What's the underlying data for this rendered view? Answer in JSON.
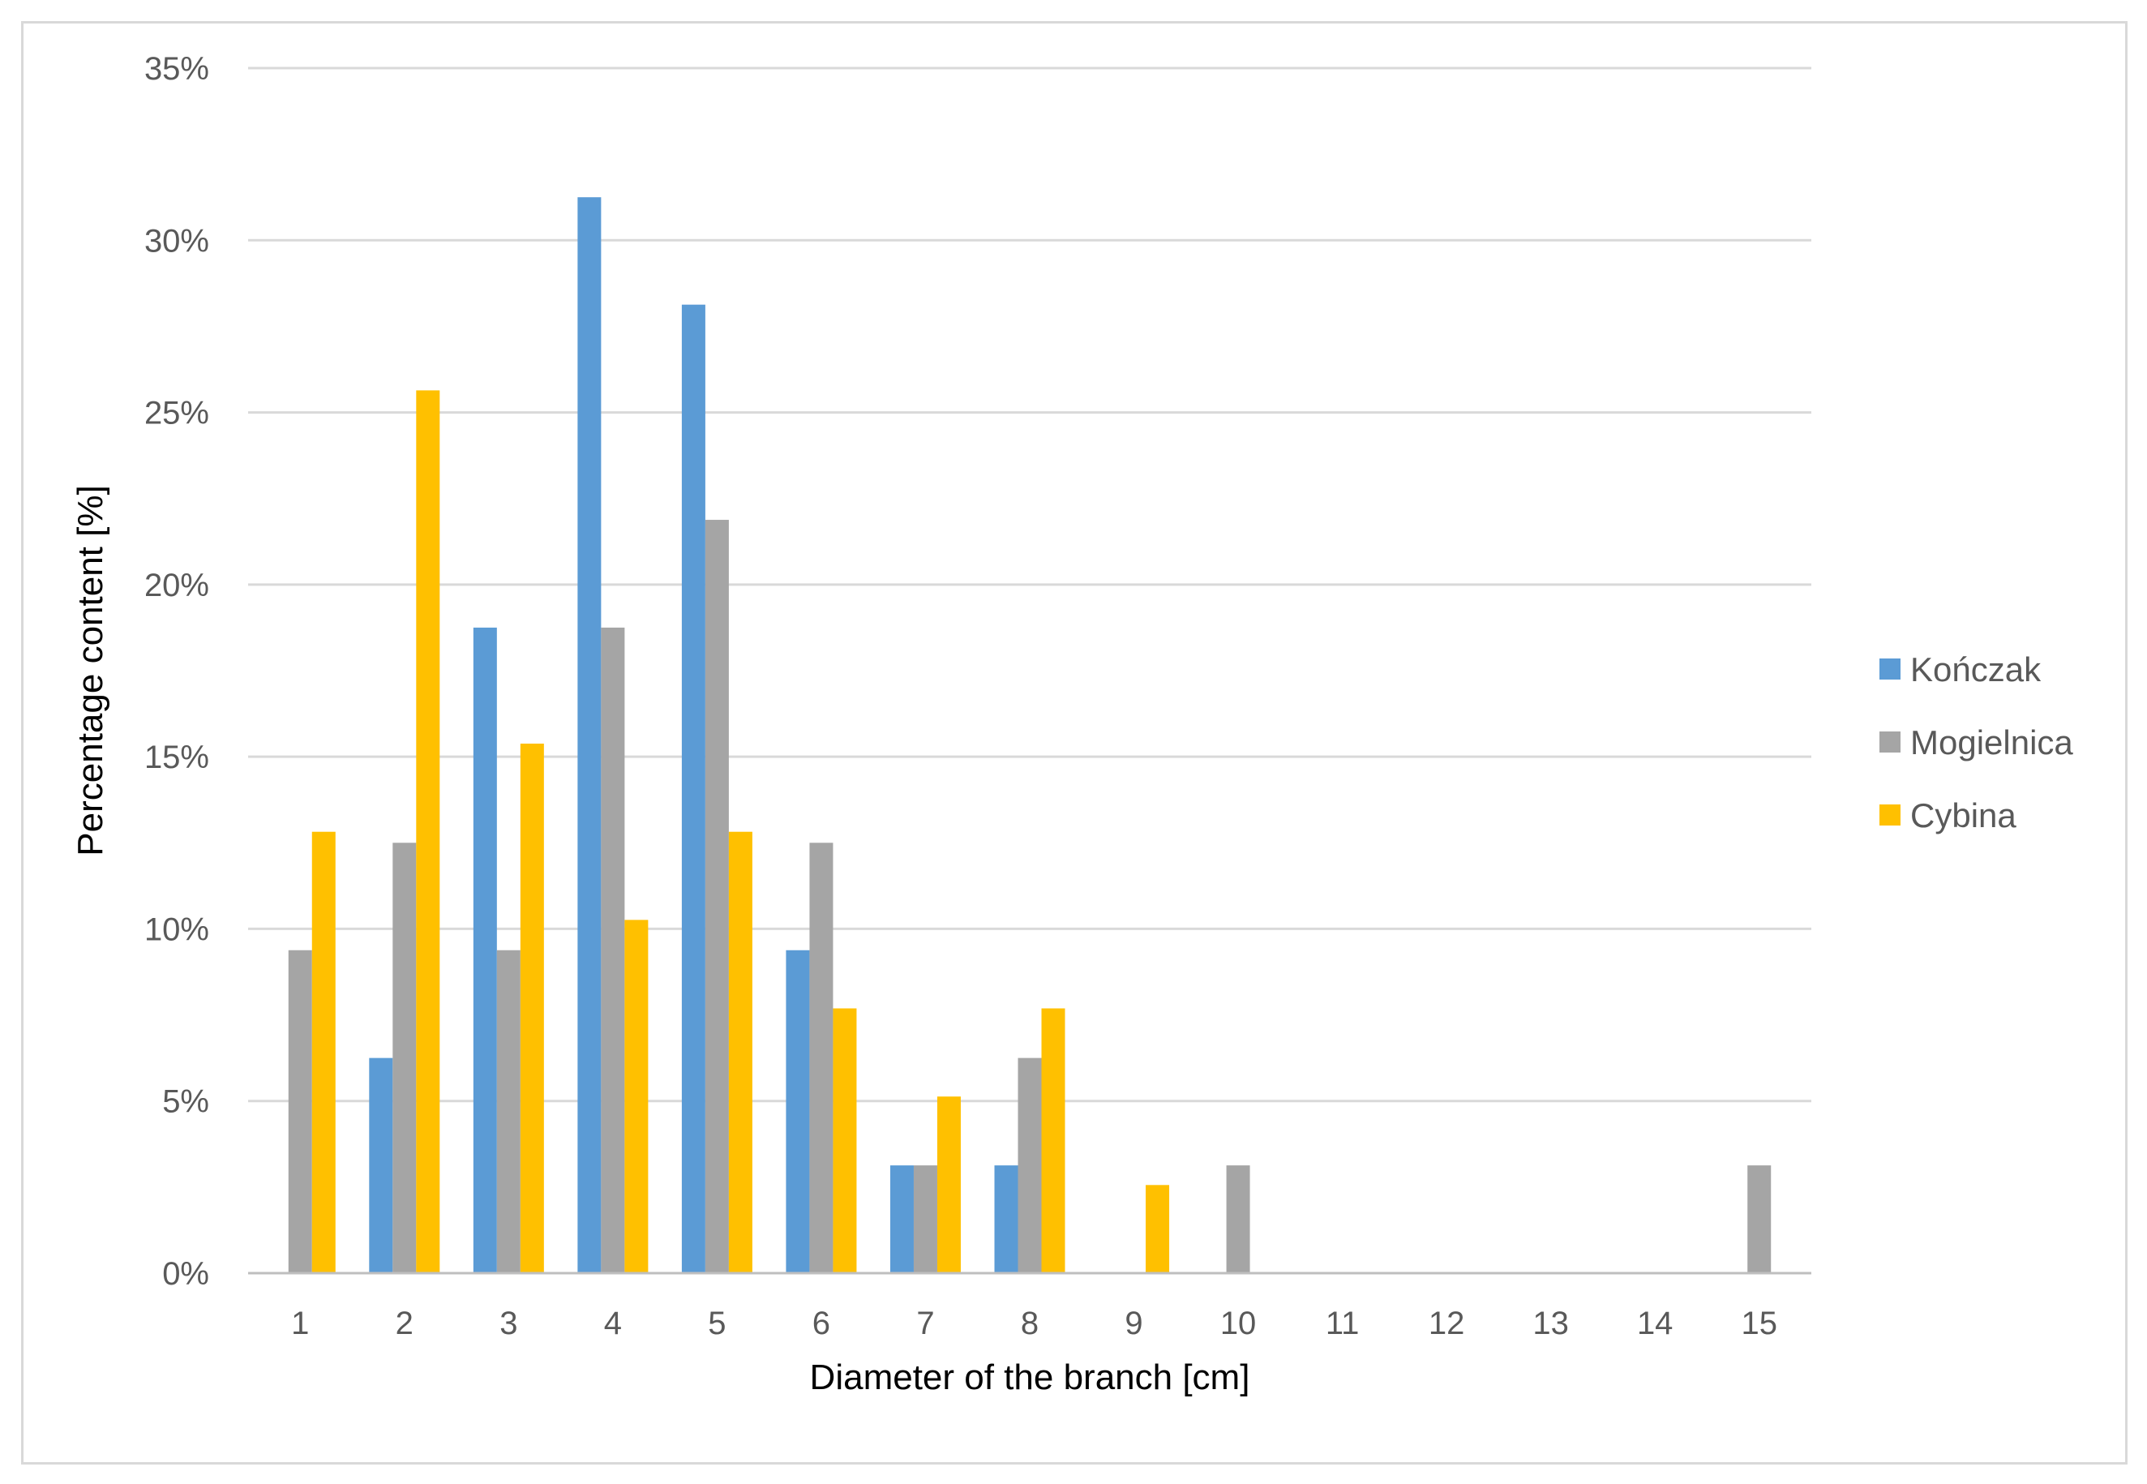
{
  "chart_data": {
    "type": "bar",
    "xlabel": "Diameter of the branch [cm]",
    "ylabel": "Percentage content [%]",
    "categories": [
      "1",
      "2",
      "3",
      "4",
      "5",
      "6",
      "7",
      "8",
      "9",
      "10",
      "11",
      "12",
      "13",
      "14",
      "15"
    ],
    "ylim": [
      0,
      35
    ],
    "yticks": [
      "0%",
      "5%",
      "10%",
      "15%",
      "20%",
      "25%",
      "30%",
      "35%"
    ],
    "grid": true,
    "legend_position": "right",
    "series": [
      {
        "name": "Kończak",
        "color": "#5b9bd5",
        "values": [
          0,
          6.25,
          18.75,
          31.25,
          28.13,
          9.38,
          3.13,
          3.13,
          0,
          0,
          0,
          0,
          0,
          0,
          0
        ]
      },
      {
        "name": "Mogielnica",
        "color": "#a5a5a5",
        "values": [
          9.38,
          12.5,
          9.38,
          18.75,
          21.88,
          12.5,
          3.13,
          6.25,
          0,
          3.13,
          0,
          0,
          0,
          0,
          3.13
        ]
      },
      {
        "name": "Cybina",
        "color": "#ffc000",
        "values": [
          12.82,
          25.64,
          15.38,
          10.26,
          12.82,
          7.69,
          5.13,
          7.69,
          2.56,
          0,
          0,
          0,
          0,
          0,
          0
        ]
      }
    ]
  }
}
